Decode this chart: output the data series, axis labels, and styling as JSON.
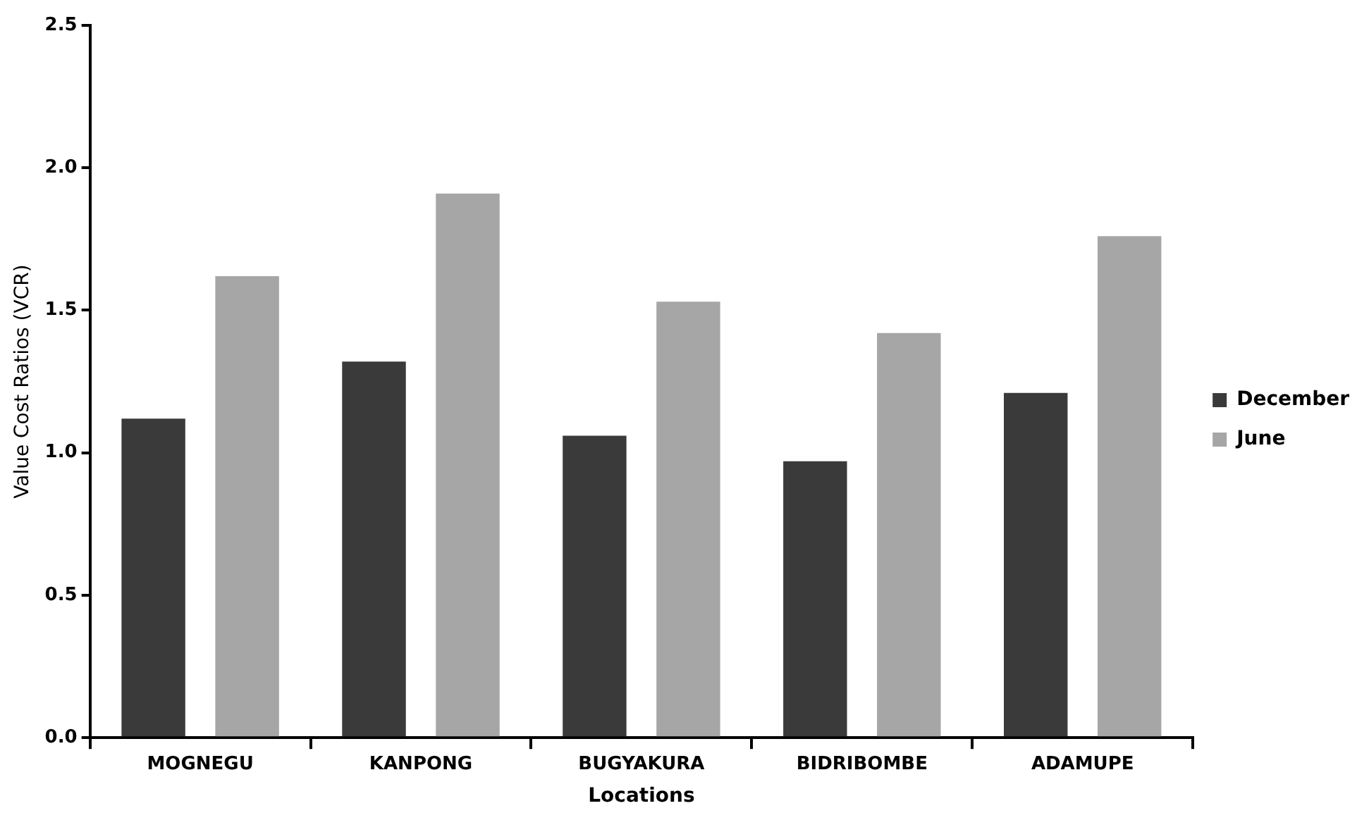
{
  "chart_data": {
    "type": "bar",
    "xlabel": "Locations",
    "ylabel": "Value Cost Ratios (VCR)",
    "categories": [
      "MOGNEGU",
      "KANPONG",
      "BUGYAKURA",
      "BIDRIBOMBE",
      "ADAMUPE"
    ],
    "series": [
      {
        "name": "December",
        "color": "#3a3a3a",
        "values": [
          1.12,
          1.32,
          1.06,
          0.97,
          1.21
        ]
      },
      {
        "name": "June",
        "color": "#a6a6a6",
        "values": [
          1.62,
          1.91,
          1.53,
          1.42,
          1.76
        ]
      }
    ],
    "ylim": [
      0,
      2.5
    ],
    "yticks": [
      {
        "value": 0,
        "label": "0.0"
      },
      {
        "value": 0.5,
        "label": "0.5"
      },
      {
        "value": 1,
        "label": "1.0"
      },
      {
        "value": 1.5,
        "label": "1.5"
      },
      {
        "value": 2,
        "label": "2.0"
      },
      {
        "value": 2.5,
        "label": "2.5"
      }
    ],
    "grid": false,
    "legend": "right"
  }
}
